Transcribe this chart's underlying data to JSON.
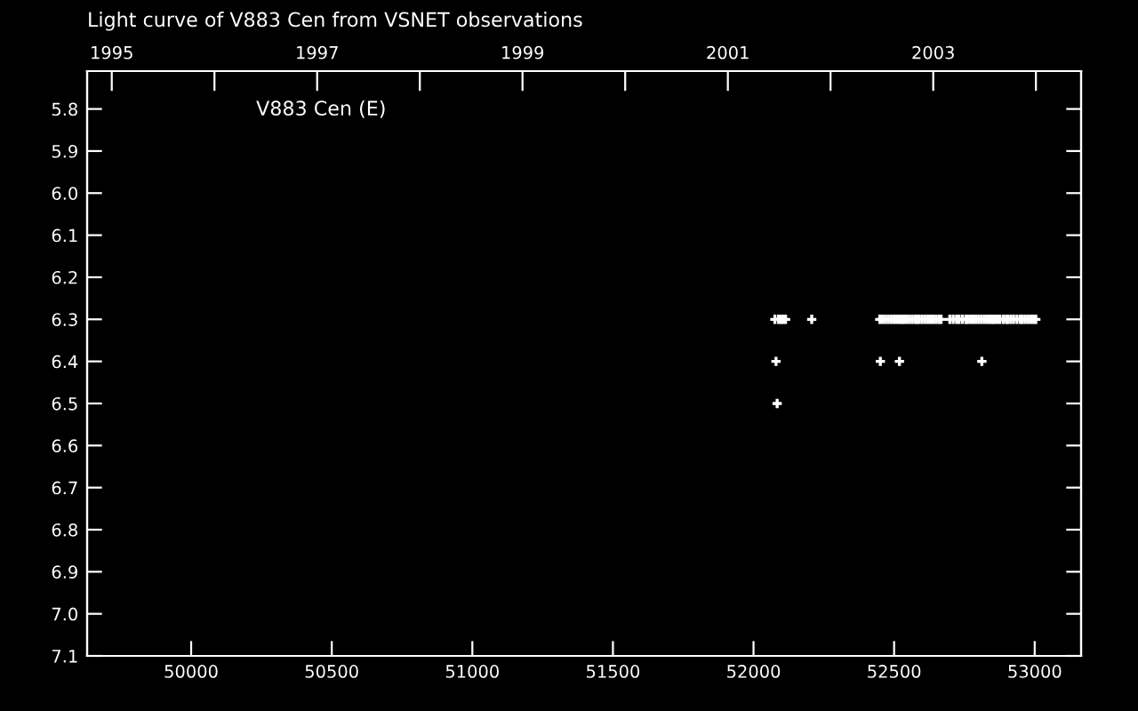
{
  "chart_data": {
    "type": "scatter",
    "title": "Light curve of V883 Cen from VSNET observations",
    "annotations": [
      "V883 Cen (E)"
    ],
    "x": [
      52076,
      52089,
      52097,
      52105,
      52114,
      52207,
      52449,
      52459,
      52469,
      52479,
      52489,
      52499,
      52509,
      52519,
      52527,
      52534,
      52544,
      52554,
      52564,
      52574,
      52582,
      52589,
      52599,
      52609,
      52619,
      52629,
      52639,
      52649,
      52659,
      52667,
      52698,
      52710,
      52722,
      52731,
      52743,
      52755,
      52761,
      52771,
      52781,
      52791,
      52801,
      52811,
      52821,
      52831,
      52841,
      52850,
      52856,
      52866,
      52876,
      52888,
      52899,
      52905,
      52915,
      52925,
      52937,
      52949,
      52956,
      52966,
      52976,
      52986,
      52996,
      53004,
      52080,
      52451,
      52519,
      52812,
      52084
    ],
    "values": [
      6.3,
      6.3,
      6.3,
      6.3,
      6.3,
      6.3,
      6.3,
      6.3,
      6.3,
      6.3,
      6.3,
      6.3,
      6.3,
      6.3,
      6.3,
      6.3,
      6.3,
      6.3,
      6.3,
      6.3,
      6.3,
      6.3,
      6.3,
      6.3,
      6.3,
      6.3,
      6.3,
      6.3,
      6.3,
      6.3,
      6.3,
      6.3,
      6.3,
      6.3,
      6.3,
      6.3,
      6.3,
      6.3,
      6.3,
      6.3,
      6.3,
      6.3,
      6.3,
      6.3,
      6.3,
      6.3,
      6.3,
      6.3,
      6.3,
      6.3,
      6.3,
      6.3,
      6.3,
      6.3,
      6.3,
      6.3,
      6.3,
      6.3,
      6.3,
      6.3,
      6.3,
      6.3,
      6.4,
      6.4,
      6.4,
      6.4,
      6.5
    ],
    "color": "#ffffff",
    "marker": "cross",
    "xlim": [
      49630,
      53165
    ],
    "ylim": [
      7.1,
      5.71
    ],
    "xticks": [
      50000,
      50500,
      51000,
      51500,
      52000,
      52500,
      53000
    ],
    "yticks": [
      5.8,
      5.9,
      {
        "value": 6,
        "label": "6.0"
      },
      6.1,
      6.2,
      6.3,
      6.4,
      6.5,
      6.6,
      6.7,
      6.8,
      6.9,
      {
        "value": 7,
        "label": "7.0"
      },
      7.1
    ],
    "x2lim": [
      1994.76,
      2004.44
    ],
    "x2ticks": [
      1995,
      {
        "value": 1996,
        "label": null
      },
      1997,
      {
        "value": 1998,
        "label": null
      },
      1999,
      {
        "value": 2000,
        "label": null
      },
      2001,
      {
        "value": 2002,
        "label": null
      },
      2003,
      {
        "value": 2004,
        "label": null
      }
    ],
    "grid": false
  }
}
